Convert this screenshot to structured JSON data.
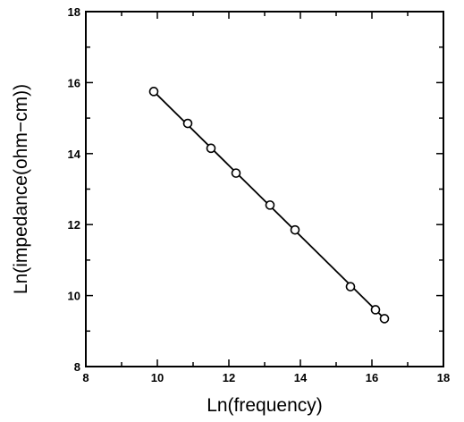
{
  "chart_data": {
    "type": "scatter",
    "title": "",
    "xlabel": "Ln(frequency)",
    "ylabel": "Ln(impedance(ohm−cm))",
    "xlim": [
      8,
      18
    ],
    "ylim": [
      8,
      18
    ],
    "x_ticks": [
      "8",
      "10",
      "12",
      "14",
      "16",
      "18"
    ],
    "y_ticks": [
      "8",
      "10",
      "12",
      "14",
      "16",
      "18"
    ],
    "grid": false,
    "legend": "none",
    "series": [
      {
        "points": [
          {
            "x": 9.9,
            "y": 15.75
          },
          {
            "x": 10.85,
            "y": 14.85
          },
          {
            "x": 11.5,
            "y": 14.15
          },
          {
            "x": 12.2,
            "y": 13.45
          },
          {
            "x": 13.15,
            "y": 12.55
          },
          {
            "x": 13.85,
            "y": 11.85
          },
          {
            "x": 15.4,
            "y": 10.25
          },
          {
            "x": 16.1,
            "y": 9.6
          },
          {
            "x": 16.35,
            "y": 9.35
          }
        ],
        "fit_line": {
          "x": [
            9.9,
            16.35
          ],
          "y": [
            15.75,
            9.35
          ]
        }
      }
    ],
    "colors": {
      "line": "#000000",
      "marker": "#000000"
    }
  }
}
